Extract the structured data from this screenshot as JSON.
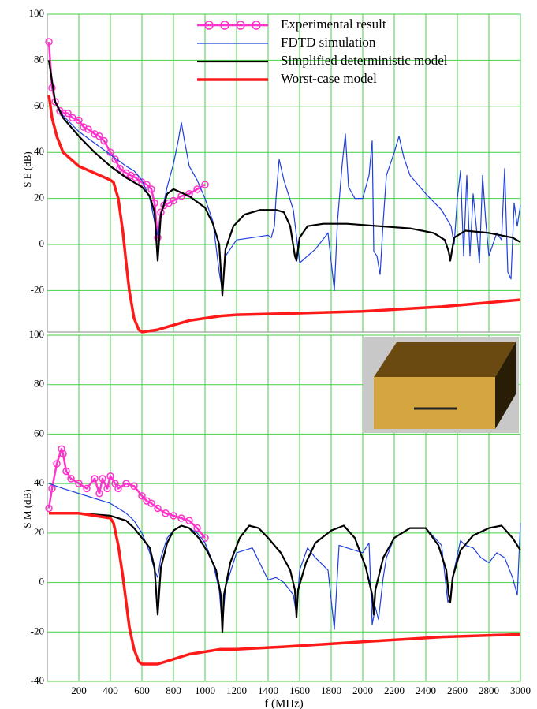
{
  "chart_data": [
    {
      "type": "line",
      "ylabel": "S E (dB)",
      "xlim": [
        0,
        3000
      ],
      "ylim": [
        -38,
        100
      ],
      "yticks": [
        -20,
        0,
        20,
        40,
        60,
        80,
        100
      ],
      "grid": true,
      "legend": "top-right",
      "series": [
        {
          "name": "Experimental result",
          "color": "#ff33cc",
          "marker": "circle",
          "width": 2.5,
          "x": [
            10,
            30,
            50,
            80,
            100,
            130,
            160,
            200,
            230,
            260,
            300,
            330,
            360,
            400,
            430,
            460,
            500,
            530,
            560,
            600,
            630,
            660,
            680,
            700,
            720,
            740,
            770,
            800,
            850,
            900,
            950,
            1000
          ],
          "values": [
            88,
            68,
            62,
            58,
            57,
            57,
            55,
            54,
            51,
            50,
            48,
            47,
            45,
            40,
            37,
            33,
            31,
            30,
            29,
            27,
            26,
            24,
            18,
            3,
            14,
            17,
            18,
            19,
            21,
            22,
            24,
            26
          ]
        },
        {
          "name": "FDTD simulation",
          "color": "#1f3fe0",
          "width": 1.2,
          "x": [
            10,
            50,
            100,
            200,
            300,
            400,
            500,
            550,
            600,
            650,
            680,
            700,
            720,
            760,
            800,
            830,
            850,
            870,
            900,
            950,
            1000,
            1050,
            1090,
            1110,
            1130,
            1200,
            1300,
            1400,
            1420,
            1440,
            1450,
            1470,
            1500,
            1560,
            1600,
            1650,
            1700,
            1780,
            1820,
            1840,
            1870,
            1890,
            1910,
            1950,
            2000,
            2040,
            2060,
            2070,
            2090,
            2110,
            2130,
            2150,
            2200,
            2230,
            2260,
            2300,
            2400,
            2500,
            2560,
            2580,
            2600,
            2620,
            2640,
            2660,
            2680,
            2700,
            2720,
            2740,
            2760,
            2780,
            2800,
            2850,
            2880,
            2900,
            2920,
            2940,
            2960,
            2980,
            3000
          ],
          "values": [
            80,
            62,
            56,
            49,
            44,
            39,
            34,
            32,
            28,
            20,
            10,
            4,
            12,
            25,
            35,
            45,
            53,
            45,
            34,
            28,
            20,
            10,
            -12,
            -20,
            -5,
            2,
            3,
            4,
            3,
            8,
            20,
            37,
            28,
            15,
            -8,
            -5,
            -2,
            5,
            -20,
            10,
            35,
            48,
            25,
            20,
            20,
            30,
            45,
            -3,
            -5,
            -13,
            10,
            30,
            40,
            47,
            38,
            30,
            22,
            15,
            8,
            0,
            20,
            32,
            -5,
            30,
            -5,
            22,
            8,
            -8,
            30,
            10,
            -5,
            5,
            2,
            33,
            -12,
            -15,
            18,
            8,
            17
          ]
        },
        {
          "name": "Simplified deterministic model",
          "color": "#000000",
          "width": 2.2,
          "x": [
            10,
            50,
            100,
            200,
            300,
            400,
            500,
            550,
            600,
            650,
            680,
            700,
            720,
            760,
            800,
            900,
            1000,
            1050,
            1090,
            1110,
            1130,
            1180,
            1250,
            1350,
            1450,
            1500,
            1540,
            1570,
            1580,
            1600,
            1650,
            1750,
            1900,
            2100,
            2300,
            2450,
            2520,
            2545,
            2555,
            2580,
            2650,
            2800,
            2950,
            3000
          ],
          "values": [
            80,
            62,
            55,
            47,
            40,
            34,
            29,
            27,
            25,
            21,
            14,
            -7,
            13,
            22,
            24,
            21,
            16,
            9,
            0,
            -22,
            -2,
            8,
            13,
            15,
            15,
            14,
            8,
            -5,
            -7,
            3,
            8,
            9,
            9,
            8,
            7,
            5,
            2,
            -3,
            -7,
            3,
            6,
            5,
            3,
            1
          ]
        },
        {
          "name": "Worst-case model",
          "color": "#ff1a1a",
          "width": 3.5,
          "x": [
            10,
            30,
            60,
            100,
            200,
            300,
            400,
            420,
            450,
            480,
            500,
            520,
            550,
            580,
            600,
            700,
            800,
            900,
            1000,
            1100,
            1200,
            1500,
            2000,
            2500,
            3000
          ],
          "values": [
            65,
            55,
            47,
            40,
            34,
            31,
            28,
            27,
            20,
            5,
            -8,
            -20,
            -32,
            -37,
            -38,
            -37,
            -35,
            -33,
            -32,
            -31,
            -30.5,
            -30,
            -29,
            -27,
            -24
          ]
        }
      ]
    },
    {
      "type": "line",
      "ylabel": "S M (dB)",
      "xlabel": "f (MHz)",
      "xlim": [
        0,
        3000
      ],
      "ylim": [
        -40,
        100
      ],
      "yticks": [
        -40,
        -20,
        0,
        20,
        40,
        60,
        80,
        100
      ],
      "xticks": [
        200,
        400,
        600,
        800,
        1000,
        1200,
        1400,
        1600,
        1800,
        2000,
        2200,
        2400,
        2600,
        2800,
        3000
      ],
      "grid": true,
      "series": [
        {
          "color": "#ff33cc",
          "marker": "circle",
          "width": 2.5,
          "x": [
            10,
            30,
            60,
            90,
            100,
            120,
            150,
            200,
            250,
            300,
            330,
            350,
            380,
            400,
            430,
            450,
            500,
            550,
            600,
            630,
            660,
            700,
            750,
            800,
            850,
            900,
            950,
            1000
          ],
          "values": [
            30,
            38,
            48,
            54,
            52,
            45,
            42,
            40,
            38,
            42,
            36,
            42,
            38,
            43,
            40,
            38,
            40,
            39,
            35,
            33,
            32,
            30,
            28,
            27,
            26,
            25,
            22,
            18
          ]
        },
        {
          "color": "#1f3fe0",
          "width": 1.2,
          "x": [
            10,
            100,
            200,
            300,
            400,
            500,
            550,
            600,
            650,
            680,
            700,
            720,
            760,
            800,
            850,
            900,
            950,
            1000,
            1050,
            1090,
            1110,
            1130,
            1200,
            1300,
            1400,
            1450,
            1500,
            1560,
            1580,
            1600,
            1650,
            1700,
            1780,
            1820,
            1850,
            1900,
            2000,
            2040,
            2060,
            2080,
            2100,
            2130,
            2150,
            2200,
            2300,
            2400,
            2500,
            2540,
            2560,
            2580,
            2620,
            2650,
            2700,
            2750,
            2800,
            2850,
            2900,
            2950,
            2980,
            3000
          ],
          "values": [
            40,
            38,
            36,
            34,
            32,
            28,
            25,
            20,
            12,
            5,
            2,
            10,
            18,
            21,
            23,
            22,
            20,
            16,
            8,
            -3,
            -18,
            -2,
            12,
            14,
            1,
            2,
            0,
            -5,
            -13,
            5,
            14,
            10,
            5,
            -19,
            15,
            14,
            12,
            16,
            -17,
            -10,
            -15,
            2,
            10,
            18,
            22,
            22,
            15,
            -8,
            -5,
            5,
            17,
            15,
            14,
            10,
            8,
            12,
            10,
            2,
            -5,
            24
          ]
        },
        {
          "color": "#000000",
          "width": 2.2,
          "x": [
            10,
            200,
            400,
            500,
            550,
            600,
            650,
            680,
            700,
            720,
            760,
            800,
            850,
            900,
            960,
            1020,
            1070,
            1100,
            1110,
            1120,
            1160,
            1220,
            1280,
            1340,
            1400,
            1480,
            1540,
            1570,
            1580,
            1590,
            1640,
            1700,
            1800,
            1880,
            1950,
            2020,
            2060,
            2070,
            2080,
            2130,
            2200,
            2300,
            2400,
            2480,
            2530,
            2545,
            2555,
            2570,
            2620,
            2700,
            2800,
            2880,
            2950,
            3000
          ],
          "values": [
            28,
            28,
            27,
            25,
            22,
            18,
            14,
            6,
            -13,
            6,
            16,
            21,
            23,
            22,
            18,
            12,
            5,
            -5,
            -20,
            -5,
            8,
            18,
            23,
            22,
            18,
            12,
            5,
            -3,
            -14,
            -3,
            8,
            16,
            21,
            23,
            18,
            6,
            -5,
            -13,
            -3,
            10,
            18,
            22,
            22,
            15,
            5,
            -5,
            -8,
            2,
            13,
            19,
            22,
            23,
            18,
            13
          ]
        },
        {
          "color": "#ff1a1a",
          "width": 3.5,
          "x": [
            10,
            100,
            200,
            300,
            400,
            420,
            450,
            480,
            500,
            520,
            550,
            580,
            600,
            700,
            800,
            900,
            1000,
            1100,
            1200,
            1500,
            2000,
            2500,
            3000
          ],
          "values": [
            28,
            28,
            28,
            27,
            26,
            24,
            15,
            2,
            -8,
            -18,
            -27,
            -32,
            -33,
            -33,
            -31,
            -29,
            -28,
            -27,
            -27,
            -26,
            -24,
            -22,
            -21
          ]
        }
      ]
    }
  ]
}
